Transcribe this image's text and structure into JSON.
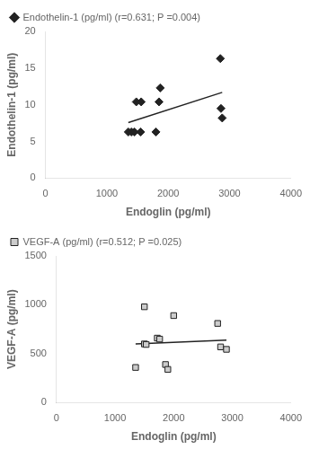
{
  "chart_data": [
    {
      "type": "scatter",
      "x_label": "Endoglin (pg/ml)",
      "y_label": "Endothelin-1 (pg/ml)",
      "series": [
        {
          "name": "Endothelin-1 (pg/ml) (r=0.631; P =0.004)",
          "type": "scatter",
          "marker": "diamond",
          "color": "#222222",
          "x": [
            1350,
            1400,
            1450,
            1550,
            1800,
            1480,
            1560,
            1850,
            1870,
            2850,
            2860,
            2880
          ],
          "values": [
            6.3,
            6.3,
            6.3,
            6.3,
            6.3,
            10.4,
            10.4,
            10.4,
            12.3,
            16.3,
            9.5,
            8.2
          ]
        },
        {
          "type": "line",
          "line_style": "solid",
          "color": "#222222",
          "x": [
            1350,
            2880
          ],
          "values": [
            7.584,
            11.693
          ]
        }
      ],
      "xlim": [
        0,
        4000
      ],
      "ylim": [
        0,
        20
      ],
      "xticks": [
        0,
        1000,
        2000,
        3000,
        4000
      ],
      "yticks": [
        0,
        5,
        10,
        15,
        20
      ],
      "grid": false,
      "legend": "upper left"
    },
    {
      "type": "scatter",
      "x_label": "Endoglin (pg/ml)",
      "y_label": "VEGF-A (pg/ml)",
      "series": [
        {
          "name": "VEGF-A (pg/ml) (r=0.512; P =0.025)",
          "type": "scatter",
          "marker": "square",
          "color": "#cccccc",
          "x": [
            1350,
            1500,
            1530,
            1720,
            1760,
            1860,
            1900,
            1500,
            2000,
            2750,
            2800,
            2900
          ],
          "values": [
            360,
            600,
            595,
            660,
            650,
            390,
            340,
            980,
            890,
            810,
            570,
            545
          ]
        },
        {
          "type": "line",
          "line_style": "solid",
          "color": "#222222",
          "x": [
            1350,
            2900
          ],
          "values": [
            599.9,
            640.1
          ]
        }
      ],
      "xlim": [
        0,
        4000
      ],
      "ylim": [
        0,
        1500
      ],
      "xticks": [
        0,
        1000,
        2000,
        3000,
        4000
      ],
      "yticks": [
        0,
        500,
        1000,
        1500
      ],
      "grid": false,
      "legend": "upper left"
    }
  ]
}
